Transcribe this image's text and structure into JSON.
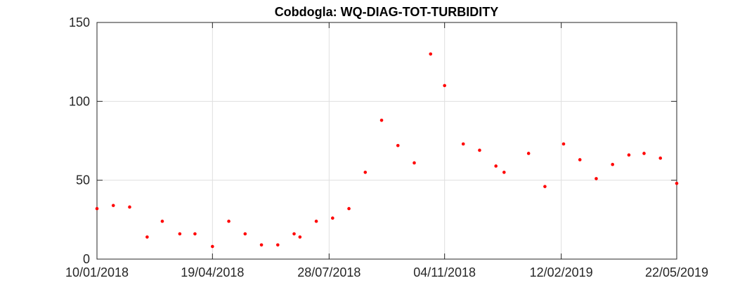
{
  "chart_data": {
    "type": "scatter",
    "title": "Cobdogla: WQ-DIAG-TOT-TURBIDITY",
    "xlabel": "",
    "ylabel": "",
    "xlim": [
      "2018-01-10",
      "2019-05-22"
    ],
    "ylim": [
      0,
      150
    ],
    "x_ticks": [
      "10/01/2018",
      "19/04/2018",
      "28/07/2018",
      "04/11/2018",
      "12/02/2019",
      "22/05/2019"
    ],
    "y_ticks": [
      "0",
      "50",
      "100",
      "150"
    ],
    "grid": true,
    "legend": "none",
    "marker_color": "#ff0000",
    "series": [
      {
        "points": [
          {
            "x": "2018-01-10",
            "y": 32
          },
          {
            "x": "2018-01-24",
            "y": 34
          },
          {
            "x": "2018-02-07",
            "y": 33
          },
          {
            "x": "2018-02-22",
            "y": 14
          },
          {
            "x": "2018-03-07",
            "y": 24
          },
          {
            "x": "2018-03-22",
            "y": 16
          },
          {
            "x": "2018-04-04",
            "y": 16
          },
          {
            "x": "2018-04-19",
            "y": 8
          },
          {
            "x": "2018-05-03",
            "y": 24
          },
          {
            "x": "2018-05-17",
            "y": 16
          },
          {
            "x": "2018-05-31",
            "y": 9
          },
          {
            "x": "2018-06-14",
            "y": 9
          },
          {
            "x": "2018-06-28",
            "y": 16
          },
          {
            "x": "2018-07-03",
            "y": 14
          },
          {
            "x": "2018-07-17",
            "y": 24
          },
          {
            "x": "2018-07-31",
            "y": 26
          },
          {
            "x": "2018-08-14",
            "y": 32
          },
          {
            "x": "2018-08-28",
            "y": 55
          },
          {
            "x": "2018-09-11",
            "y": 88
          },
          {
            "x": "2018-09-25",
            "y": 72
          },
          {
            "x": "2018-10-09",
            "y": 61
          },
          {
            "x": "2018-10-23",
            "y": 130
          },
          {
            "x": "2018-11-04",
            "y": 110
          },
          {
            "x": "2018-11-20",
            "y": 73
          },
          {
            "x": "2018-12-04",
            "y": 69
          },
          {
            "x": "2018-12-18",
            "y": 59
          },
          {
            "x": "2018-12-25",
            "y": 55
          },
          {
            "x": "2019-01-15",
            "y": 67
          },
          {
            "x": "2019-01-29",
            "y": 46
          },
          {
            "x": "2019-02-14",
            "y": 73
          },
          {
            "x": "2019-02-28",
            "y": 63
          },
          {
            "x": "2019-03-14",
            "y": 51
          },
          {
            "x": "2019-03-28",
            "y": 60
          },
          {
            "x": "2019-04-11",
            "y": 66
          },
          {
            "x": "2019-04-24",
            "y": 67
          },
          {
            "x": "2019-05-08",
            "y": 64
          },
          {
            "x": "2019-05-22",
            "y": 48
          }
        ]
      }
    ]
  }
}
